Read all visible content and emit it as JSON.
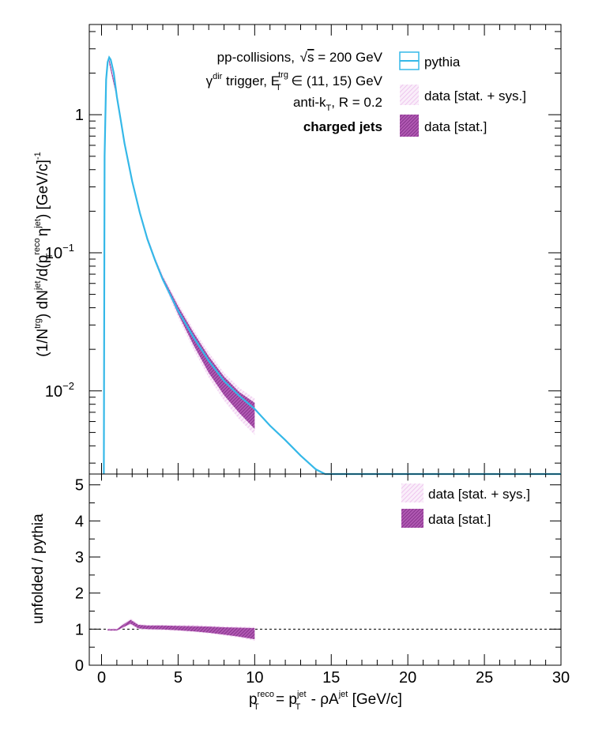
{
  "chart_data": [
    {
      "type": "line",
      "panel": "upper",
      "y_scale": "log",
      "xlim": [
        -0.8,
        30
      ],
      "ylim": [
        0.0025,
        4.5
      ],
      "ytick_labels": [
        {
          "value": 1,
          "base": "1",
          "exp": ""
        },
        {
          "value": 0.1,
          "base": "10",
          "exp": "−1"
        },
        {
          "value": 0.01,
          "base": "10",
          "exp": "−2"
        }
      ],
      "ylabel_parts": [
        "(1/N",
        "trg",
        ") dN",
        "jet",
        "/d(p",
        "reco",
        "T",
        " η",
        "jet",
        ") [GeV/c]",
        "-1"
      ],
      "annotations": {
        "line1": "pp-collisions, ",
        "line1_sqrt": "s",
        "line1_rest": " = 200 GeV",
        "line2_gamma": "γ",
        "line2_dir": "dir",
        "line2_mid": " trigger, E",
        "line2_trg": "trg",
        "line2_T": "T",
        "line2_rest": " ∈ (11, 15) GeV",
        "line3_a": "anti-k",
        "line3_T": "T",
        "line3_b": ", R = 0.2",
        "line4": "charged jets"
      },
      "legend": [
        "pythia",
        "data [stat. + sys.]",
        "data [stat.]"
      ],
      "series": [
        {
          "name": "pythia",
          "color": "#35b8e8",
          "x": [
            0.15,
            0.2,
            0.3,
            0.4,
            0.5,
            0.6,
            0.8,
            1.0,
            1.25,
            1.5,
            2.0,
            2.5,
            3.0,
            3.5,
            4.0,
            5.0,
            6.0,
            7.0,
            8.0,
            9.0,
            10.0,
            11.0,
            12.0,
            13.0,
            14.0,
            14.6,
            15,
            20,
            25,
            30
          ],
          "y": [
            0.0025,
            0.5,
            1.8,
            2.4,
            2.6,
            2.5,
            2.0,
            1.35,
            0.92,
            0.62,
            0.33,
            0.195,
            0.125,
            0.088,
            0.064,
            0.038,
            0.0245,
            0.0165,
            0.0118,
            0.0092,
            0.0074,
            0.0056,
            0.0044,
            0.0034,
            0.0027,
            0.0025,
            0.0025,
            0.0025,
            0.0025,
            0.0025
          ]
        },
        {
          "name": "data [stat. + sys.]",
          "color": "#f2d4f2",
          "x": [
            0.5,
            1.0,
            1.5,
            2.0,
            2.5,
            3.0,
            3.5,
            4.0,
            5.0,
            6.0,
            7.0,
            8.0,
            9.0,
            10.0
          ],
          "y_low": [
            2.3,
            1.3,
            0.6,
            0.32,
            0.19,
            0.122,
            0.085,
            0.062,
            0.034,
            0.02,
            0.0125,
            0.0085,
            0.0062,
            0.0048
          ],
          "y_high": [
            2.6,
            1.42,
            0.66,
            0.345,
            0.205,
            0.132,
            0.093,
            0.069,
            0.043,
            0.028,
            0.019,
            0.0135,
            0.0105,
            0.0088
          ]
        },
        {
          "name": "data [stat.]",
          "color": "#9b3a9e",
          "x": [
            0.5,
            1.0,
            1.5,
            2.0,
            2.5,
            3.0,
            3.5,
            4.0,
            5.0,
            6.0,
            7.0,
            8.0,
            9.0,
            10.0
          ],
          "y_low": [
            2.35,
            1.32,
            0.61,
            0.325,
            0.193,
            0.124,
            0.087,
            0.064,
            0.036,
            0.0215,
            0.0135,
            0.0093,
            0.0069,
            0.0053
          ],
          "y_high": [
            2.55,
            1.4,
            0.65,
            0.34,
            0.2,
            0.13,
            0.091,
            0.067,
            0.041,
            0.0265,
            0.0178,
            0.0127,
            0.0098,
            0.0082
          ]
        }
      ]
    },
    {
      "type": "area",
      "panel": "lower",
      "xlim": [
        -0.8,
        30
      ],
      "ylim": [
        0,
        5.3
      ],
      "xticks": [
        0,
        5,
        10,
        15,
        20,
        25,
        30
      ],
      "yticks": [
        0,
        1,
        2,
        3,
        4,
        5
      ],
      "ylabel": "unfolded / pythia",
      "xlabel_parts": [
        "p",
        "reco",
        "T",
        " = p",
        "jet",
        "T",
        " - ρA",
        "jet",
        " [GeV/c]"
      ],
      "reference_line": 1,
      "legend": [
        "data [stat. + sys.]",
        "data [stat.]"
      ],
      "series": [
        {
          "name": "data [stat. + sys.]",
          "color": "#f2d4f2",
          "x": [
            0.4,
            1.0,
            1.5,
            1.9,
            2.4,
            3.0,
            4.0,
            5.0,
            6.0,
            7.0,
            8.0,
            9.0,
            10.0
          ],
          "y_low": [
            0.95,
            0.95,
            1.05,
            1.12,
            1.0,
            0.98,
            0.97,
            0.95,
            0.92,
            0.88,
            0.82,
            0.76,
            0.68
          ],
          "y_high": [
            1.02,
            1.02,
            1.18,
            1.3,
            1.15,
            1.12,
            1.12,
            1.12,
            1.12,
            1.1,
            1.08,
            1.07,
            1.06
          ]
        },
        {
          "name": "data [stat.]",
          "color": "#9b3a9e",
          "x": [
            0.4,
            1.0,
            1.5,
            1.9,
            2.4,
            3.0,
            4.0,
            5.0,
            6.0,
            7.0,
            8.0,
            9.0,
            10.0
          ],
          "y_low": [
            0.96,
            0.96,
            1.07,
            1.15,
            1.02,
            1.0,
            0.99,
            0.97,
            0.94,
            0.9,
            0.85,
            0.79,
            0.72
          ],
          "y_high": [
            1.0,
            1.0,
            1.15,
            1.26,
            1.12,
            1.1,
            1.1,
            1.09,
            1.08,
            1.07,
            1.05,
            1.04,
            1.03
          ]
        }
      ]
    }
  ]
}
